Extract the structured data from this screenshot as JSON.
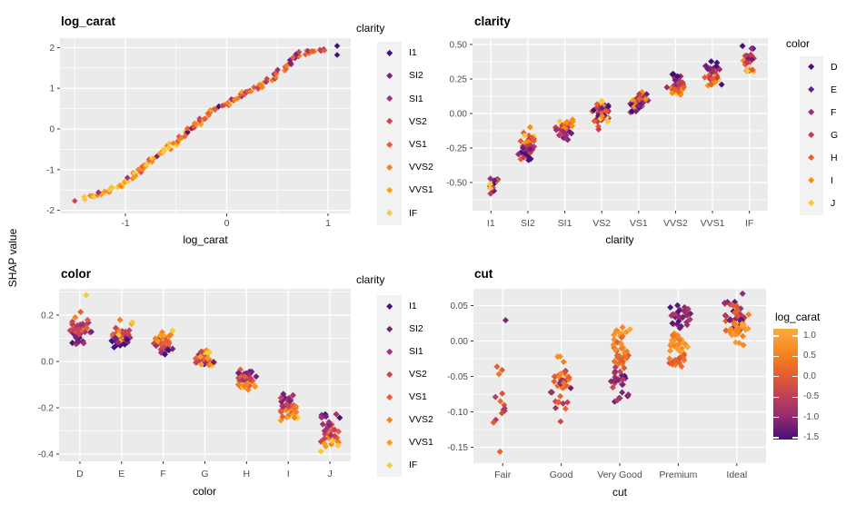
{
  "figure": {
    "ylab": "SHAP value",
    "panel_bg": "#EBEBEB",
    "grid_color": "#FFFFFF",
    "tick_color": "#333333",
    "tick_text_color": "#4D4D4D"
  },
  "palettes": {
    "clarity": {
      "title": "clarity",
      "levels": [
        "I1",
        "SI2",
        "SI1",
        "VS2",
        "VS1",
        "VVS2",
        "VVS1",
        "IF"
      ],
      "colors": [
        "#46107B",
        "#76207F",
        "#A33074",
        "#C74457",
        "#E55D3D",
        "#F5811D",
        "#FA9E17",
        "#F9C93C"
      ]
    },
    "color": {
      "title": "color",
      "levels": [
        "D",
        "E",
        "F",
        "G",
        "H",
        "I",
        "J"
      ],
      "colors": [
        "#45107B",
        "#6C1D81",
        "#9A2C73",
        "#C43C51",
        "#E65D2F",
        "#F98E0A",
        "#F9C83B"
      ]
    },
    "log_carat": {
      "title": "log_carat",
      "ticks": [
        "1.0",
        "0.5",
        "0.0",
        "-0.5",
        "-1.0",
        "-1.5"
      ],
      "tick_values": [
        1.0,
        0.5,
        0.0,
        -0.5,
        -1.0,
        -1.5
      ],
      "domain": [
        -1.62,
        1.15
      ],
      "stops": [
        {
          "v": -1.62,
          "c": "#4A0F78"
        },
        {
          "v": -1.5,
          "c": "#561379"
        },
        {
          "v": -1.0,
          "c": "#992E6E"
        },
        {
          "v": -0.5,
          "c": "#C24158"
        },
        {
          "v": 0.0,
          "c": "#E45E2E"
        },
        {
          "v": 0.5,
          "c": "#F5821F"
        },
        {
          "v": 1.0,
          "c": "#FAA338"
        },
        {
          "v": 1.15,
          "c": "#FCAB39"
        }
      ]
    }
  },
  "chart_data": [
    {
      "id": "log_carat",
      "type": "scatter",
      "title": "log_carat",
      "xlabel": "log_carat",
      "legend": "clarity",
      "x_ticks": [
        "-1",
        "0",
        "1"
      ],
      "x_tick_values": [
        -1,
        0,
        1
      ],
      "x_minor": [
        -1.5,
        -0.5,
        0.5
      ],
      "y_ticks": [
        "2",
        "1",
        "0",
        "-1",
        "-2"
      ],
      "y_tick_values": [
        2,
        1,
        0,
        -1,
        -2
      ],
      "y_minor": [
        1.5,
        0.5,
        -0.5,
        -1.5
      ],
      "x_domain": [
        -1.65,
        1.22
      ],
      "y_domain": [
        -2.03,
        2.23
      ],
      "points_per_segment": 3,
      "jitter": {
        "x": 0.03,
        "y": 0.045
      },
      "curve": [
        [
          -1.41,
          -1.71
        ],
        [
          -1.35,
          -1.67
        ],
        [
          -1.29,
          -1.62
        ],
        [
          -1.23,
          -1.56
        ],
        [
          -1.17,
          -1.5
        ],
        [
          -1.11,
          -1.44
        ],
        [
          -1.05,
          -1.37
        ],
        [
          -1.0,
          -1.3
        ],
        [
          -0.96,
          -1.22
        ],
        [
          -0.92,
          -1.14
        ],
        [
          -0.88,
          -1.06
        ],
        [
          -0.84,
          -0.99
        ],
        [
          -0.8,
          -0.92
        ],
        [
          -0.77,
          -0.85
        ],
        [
          -0.74,
          -0.78
        ],
        [
          -0.7,
          -0.7
        ],
        [
          -0.66,
          -0.62
        ],
        [
          -0.62,
          -0.55
        ],
        [
          -0.58,
          -0.48
        ],
        [
          -0.54,
          -0.4
        ],
        [
          -0.5,
          -0.32
        ],
        [
          -0.46,
          -0.25
        ],
        [
          -0.43,
          -0.18
        ],
        [
          -0.4,
          -0.1
        ],
        [
          -0.37,
          -0.02
        ],
        [
          -0.34,
          0.05
        ],
        [
          -0.3,
          0.12
        ],
        [
          -0.26,
          0.2
        ],
        [
          -0.22,
          0.28
        ],
        [
          -0.18,
          0.35
        ],
        [
          -0.14,
          0.42
        ],
        [
          -0.1,
          0.48
        ],
        [
          -0.05,
          0.54
        ],
        [
          0.0,
          0.6
        ],
        [
          0.04,
          0.66
        ],
        [
          0.08,
          0.73
        ],
        [
          0.12,
          0.8
        ],
        [
          0.16,
          0.86
        ],
        [
          0.21,
          0.92
        ],
        [
          0.26,
          0.98
        ],
        [
          0.31,
          1.04
        ],
        [
          0.36,
          1.11
        ],
        [
          0.41,
          1.19
        ],
        [
          0.46,
          1.28
        ],
        [
          0.51,
          1.38
        ],
        [
          0.55,
          1.47
        ],
        [
          0.59,
          1.55
        ],
        [
          0.63,
          1.63
        ],
        [
          0.67,
          1.73
        ],
        [
          0.7,
          1.8
        ],
        [
          0.74,
          1.86
        ],
        [
          0.79,
          1.9
        ],
        [
          0.85,
          1.93
        ],
        [
          0.92,
          1.95
        ],
        [
          0.99,
          1.97
        ]
      ],
      "extra_points": [
        [
          1.09,
          2.04,
          0
        ],
        [
          1.09,
          1.82,
          0
        ],
        [
          -1.5,
          -1.77,
          3
        ]
      ]
    },
    {
      "id": "clarity",
      "type": "strip",
      "title": "clarity",
      "xlabel": "clarity",
      "legend": "color",
      "categories": [
        "I1",
        "SI2",
        "SI1",
        "VS2",
        "VS1",
        "VVS2",
        "VVS1",
        "IF"
      ],
      "y_ticks": [
        "0.50",
        "0.25",
        "0.00",
        "-0.25",
        "-0.50"
      ],
      "y_tick_values": [
        0.5,
        0.25,
        0,
        -0.25,
        -0.5
      ],
      "y_minor": [
        0.375,
        0.125,
        -0.125,
        -0.375,
        -0.625
      ],
      "y_domain": [
        -0.7,
        0.55
      ],
      "clusters": [
        {
          "category": "I1",
          "bias": "random",
          "width": 9,
          "bands": [
            {
              "n": 15,
              "y": [
                -0.6,
                -0.42
              ]
            }
          ]
        },
        {
          "category": "SI2",
          "bias": "asc",
          "width": 11,
          "bands": [
            {
              "n": 44,
              "y": [
                -0.355,
                -0.13
              ]
            },
            {
              "n": 1,
              "y": [
                -0.105,
                -0.095
              ]
            }
          ]
        },
        {
          "category": "SI1",
          "bias": "asc",
          "width": 11,
          "bands": [
            {
              "n": 46,
              "y": [
                -0.205,
                -0.04
              ]
            }
          ]
        },
        {
          "category": "VS2",
          "bias": "random",
          "width": 11,
          "bands": [
            {
              "n": 45,
              "y": [
                -0.08,
                0.1
              ]
            },
            {
              "n": 2,
              "y": [
                -0.135,
                -0.07
              ]
            }
          ]
        },
        {
          "category": "VS1",
          "bias": "random",
          "width": 11,
          "bands": [
            {
              "n": 45,
              "y": [
                -0.015,
                0.185
              ]
            }
          ]
        },
        {
          "category": "VVS2",
          "bias": "desc",
          "width": 11,
          "bands": [
            {
              "n": 38,
              "y": [
                0.115,
                0.31
              ]
            }
          ]
        },
        {
          "category": "VVS1",
          "bias": "desc",
          "width": 11,
          "bands": [
            {
              "n": 38,
              "y": [
                0.18,
                0.395
              ]
            }
          ]
        },
        {
          "category": "IF",
          "bias": "desc",
          "width": 9,
          "bands": [
            {
              "n": 22,
              "y": [
                0.275,
                0.505
              ]
            }
          ]
        }
      ]
    },
    {
      "id": "color",
      "type": "strip",
      "title": "color",
      "xlabel": "color",
      "legend": "clarity",
      "categories": [
        "D",
        "E",
        "F",
        "G",
        "H",
        "I",
        "J"
      ],
      "y_ticks": [
        "0.2",
        "0.0",
        "-0.2",
        "-0.4"
      ],
      "y_tick_values": [
        0.2,
        0,
        -0.2,
        -0.4
      ],
      "y_minor": [
        0.3,
        0.1,
        -0.1,
        -0.3
      ],
      "y_domain": [
        -0.431,
        0.314
      ],
      "clusters": [
        {
          "category": "D",
          "bias": "asc",
          "width": 14,
          "bands": [
            {
              "n": 50,
              "y": [
                0.06,
                0.225
              ]
            },
            {
              "n": 1,
              "y": [
                0.28,
                0.29
              ]
            }
          ]
        },
        {
          "category": "E",
          "bias": "asc",
          "width": 13,
          "bands": [
            {
              "n": 48,
              "y": [
                0.055,
                0.19
              ]
            }
          ]
        },
        {
          "category": "F",
          "bias": "asc",
          "width": 13,
          "bands": [
            {
              "n": 46,
              "y": [
                0.02,
                0.135
              ]
            }
          ]
        },
        {
          "category": "G",
          "bias": "random",
          "width": 12,
          "bands": [
            {
              "n": 38,
              "y": [
                -0.025,
                0.05
              ]
            }
          ]
        },
        {
          "category": "H",
          "bias": "desc",
          "width": 13,
          "bands": [
            {
              "n": 44,
              "y": [
                -0.135,
                -0.03
              ]
            }
          ]
        },
        {
          "category": "I",
          "bias": "desc",
          "width": 13,
          "bands": [
            {
              "n": 44,
              "y": [
                -0.265,
                -0.125
              ]
            }
          ]
        },
        {
          "category": "J",
          "bias": "desc",
          "width": 13,
          "bands": [
            {
              "n": 40,
              "y": [
                -0.39,
                -0.21
              ]
            }
          ]
        }
      ]
    },
    {
      "id": "cut",
      "type": "strip-continuous",
      "title": "cut",
      "xlabel": "cut",
      "legend": "log_carat",
      "categories": [
        "Fair",
        "Good",
        "Very Good",
        "Premium",
        "Ideal"
      ],
      "y_ticks": [
        "0.05",
        "0.00",
        "-0.05",
        "-0.10",
        "-0.15"
      ],
      "y_tick_values": [
        0.05,
        0,
        -0.05,
        -0.1,
        -0.15
      ],
      "y_minor": [
        0.025,
        -0.025,
        -0.075,
        -0.125
      ],
      "y_domain": [
        -0.172,
        0.074
      ],
      "clusters": [
        {
          "category": "Fair",
          "width": 12,
          "bands": [
            {
              "n": 1,
              "y": [
                0.028,
                0.031
              ],
              "v": [
                -1.3,
                -1.1
              ]
            },
            {
              "n": 3,
              "y": [
                -0.055,
                -0.025
              ],
              "v": [
                -0.7,
                0.3
              ]
            },
            {
              "n": 10,
              "y": [
                -0.125,
                -0.06
              ],
              "v": [
                -0.8,
                0.4
              ]
            },
            {
              "n": 1,
              "y": [
                -0.157,
                -0.152
              ],
              "v": [
                -0.2,
                0.1
              ]
            }
          ]
        },
        {
          "category": "Good",
          "width": 13,
          "bands": [
            {
              "n": 3,
              "y": [
                -0.032,
                -0.018
              ],
              "v": [
                0.3,
                0.8
              ]
            },
            {
              "n": 32,
              "y": [
                -0.08,
                -0.035
              ],
              "v": [
                -1.4,
                0.7
              ]
            },
            {
              "n": 8,
              "y": [
                -0.1,
                -0.075
              ],
              "v": [
                -0.9,
                0.2
              ]
            },
            {
              "n": 1,
              "y": [
                -0.116,
                -0.112
              ],
              "v": [
                -0.5,
                -0.3
              ]
            }
          ]
        },
        {
          "category": "Very Good",
          "width": 15,
          "bands": [
            {
              "n": 10,
              "y": [
                0.005,
                0.023
              ],
              "v": [
                0.5,
                1.1
              ]
            },
            {
              "n": 28,
              "y": [
                -0.04,
                0.01
              ],
              "v": [
                -0.1,
                0.9
              ]
            },
            {
              "n": 25,
              "y": [
                -0.07,
                -0.035
              ],
              "v": [
                -1.6,
                -0.3
              ]
            },
            {
              "n": 8,
              "y": [
                -0.092,
                -0.065
              ],
              "v": [
                -1.4,
                -0.6
              ]
            }
          ]
        },
        {
          "category": "Premium",
          "width": 15,
          "bands": [
            {
              "n": 30,
              "y": [
                0.012,
                0.054
              ],
              "v": [
                -1.6,
                -0.6
              ]
            },
            {
              "n": 25,
              "y": [
                -0.02,
                0.015
              ],
              "v": [
                0.3,
                1.1
              ]
            },
            {
              "n": 18,
              "y": [
                -0.038,
                -0.018
              ],
              "v": [
                -0.4,
                0.5
              ]
            }
          ]
        },
        {
          "category": "Ideal",
          "width": 15,
          "bands": [
            {
              "n": 1,
              "y": [
                0.066,
                0.068
              ],
              "v": [
                -1.2,
                -1.0
              ]
            },
            {
              "n": 42,
              "y": [
                0.01,
                0.062
              ],
              "v": [
                -1.6,
                0.5
              ]
            },
            {
              "n": 22,
              "y": [
                0.0,
                0.032
              ],
              "v": [
                0.4,
                1.1
              ]
            },
            {
              "n": 3,
              "y": [
                -0.008,
                0.0
              ],
              "v": [
                0.5,
                0.9
              ]
            }
          ]
        }
      ]
    }
  ]
}
